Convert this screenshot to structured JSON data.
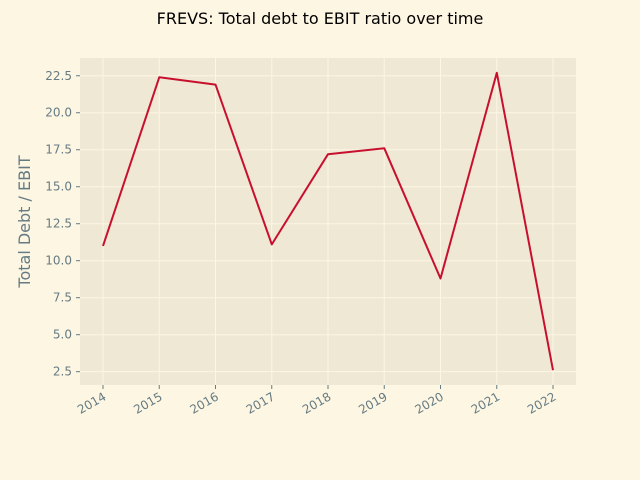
{
  "chart_data": {
    "type": "line",
    "title": "FREVS: Total debt to EBIT ratio over time",
    "xlabel": "",
    "ylabel": "Total Debt / EBIT",
    "x": [
      "2014",
      "2015",
      "2016",
      "2017",
      "2018",
      "2019",
      "2020",
      "2021",
      "2022"
    ],
    "series": [
      {
        "values": [
          11.0,
          22.4,
          21.9,
          11.1,
          17.2,
          17.6,
          8.8,
          22.7,
          2.6
        ]
      }
    ],
    "yticks": [
      "2.5",
      "5.0",
      "7.5",
      "10.0",
      "12.5",
      "15.0",
      "17.5",
      "20.0",
      "22.5"
    ],
    "ylim": [
      1.6,
      23.7
    ],
    "grid": true,
    "colors": {
      "background": "#fdf6e3",
      "plot_area": "#eee8d5",
      "grid": "#fdf6e3",
      "line": "#c8102e",
      "tick_text": "#657b83"
    }
  }
}
